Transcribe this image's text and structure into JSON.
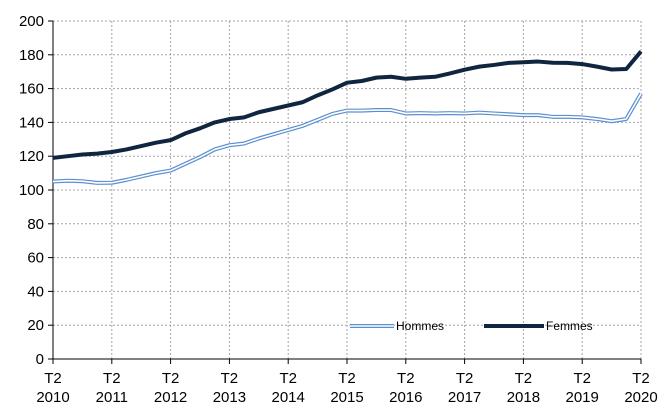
{
  "chart_data": {
    "type": "line",
    "title": "",
    "xlabel": "",
    "ylabel": "",
    "ylim": [
      0,
      200
    ],
    "yticks": [
      0,
      20,
      40,
      60,
      80,
      100,
      120,
      140,
      160,
      180,
      200
    ],
    "grid": "dotted vertical at each T2, dotted horizontal every 20",
    "legend_position": "bottom-right",
    "x": [
      "2010 T2",
      "2010 T3",
      "2010 T4",
      "2011 T1",
      "2011 T2",
      "2011 T3",
      "2011 T4",
      "2012 T1",
      "2012 T2",
      "2012 T3",
      "2012 T4",
      "2013 T1",
      "2013 T2",
      "2013 T3",
      "2013 T4",
      "2014 T1",
      "2014 T2",
      "2014 T3",
      "2014 T4",
      "2015 T1",
      "2015 T2",
      "2015 T3",
      "2015 T4",
      "2016 T1",
      "2016 T2",
      "2016 T3",
      "2016 T4",
      "2017 T1",
      "2017 T2",
      "2017 T3",
      "2017 T4",
      "2018 T1",
      "2018 T2",
      "2018 T3",
      "2018 T4",
      "2019 T1",
      "2019 T2",
      "2019 T3",
      "2019 T4",
      "2020 T1",
      "2020 T2"
    ],
    "x_tick_labels": [
      {
        "top": "T2",
        "bottom": "2010"
      },
      {
        "top": "T2",
        "bottom": "2011"
      },
      {
        "top": "T2",
        "bottom": "2012"
      },
      {
        "top": "T2",
        "bottom": "2013"
      },
      {
        "top": "T2",
        "bottom": "2014"
      },
      {
        "top": "T2",
        "bottom": "2015"
      },
      {
        "top": "T2",
        "bottom": "2016"
      },
      {
        "top": "T2",
        "bottom": "2017"
      },
      {
        "top": "T2",
        "bottom": "2018"
      },
      {
        "top": "T2",
        "bottom": "2019"
      },
      {
        "top": "T2",
        "bottom": "2020"
      }
    ],
    "series": [
      {
        "name": "Hommes",
        "color": "#5b8fd0",
        "style": "double line",
        "values": [
          105,
          105.5,
          105.2,
          104.2,
          104.3,
          106,
          108,
          110,
          111.5,
          115.5,
          119.5,
          124,
          126.5,
          127.5,
          130.5,
          133,
          135.5,
          138,
          141.5,
          145,
          147,
          147,
          147.3,
          147.3,
          145.3,
          145.5,
          145.3,
          145.5,
          145.3,
          145.8,
          145.3,
          144.8,
          144.3,
          144.3,
          143.3,
          143.3,
          143,
          142,
          140.7,
          142,
          157
        ]
      },
      {
        "name": "Femmes",
        "color": "#0f2540",
        "style": "thick line",
        "values": [
          119,
          120,
          121,
          121.5,
          122.5,
          124,
          126,
          128,
          129.5,
          133.5,
          136.5,
          140,
          142,
          143,
          146,
          148,
          150,
          152,
          156,
          159.5,
          163.5,
          164.5,
          166.5,
          167,
          165.8,
          166.5,
          167,
          169,
          171.2,
          173,
          174,
          175.2,
          175.6,
          176,
          175.3,
          175.2,
          174.5,
          173,
          171.3,
          171.6,
          182
        ]
      }
    ]
  }
}
